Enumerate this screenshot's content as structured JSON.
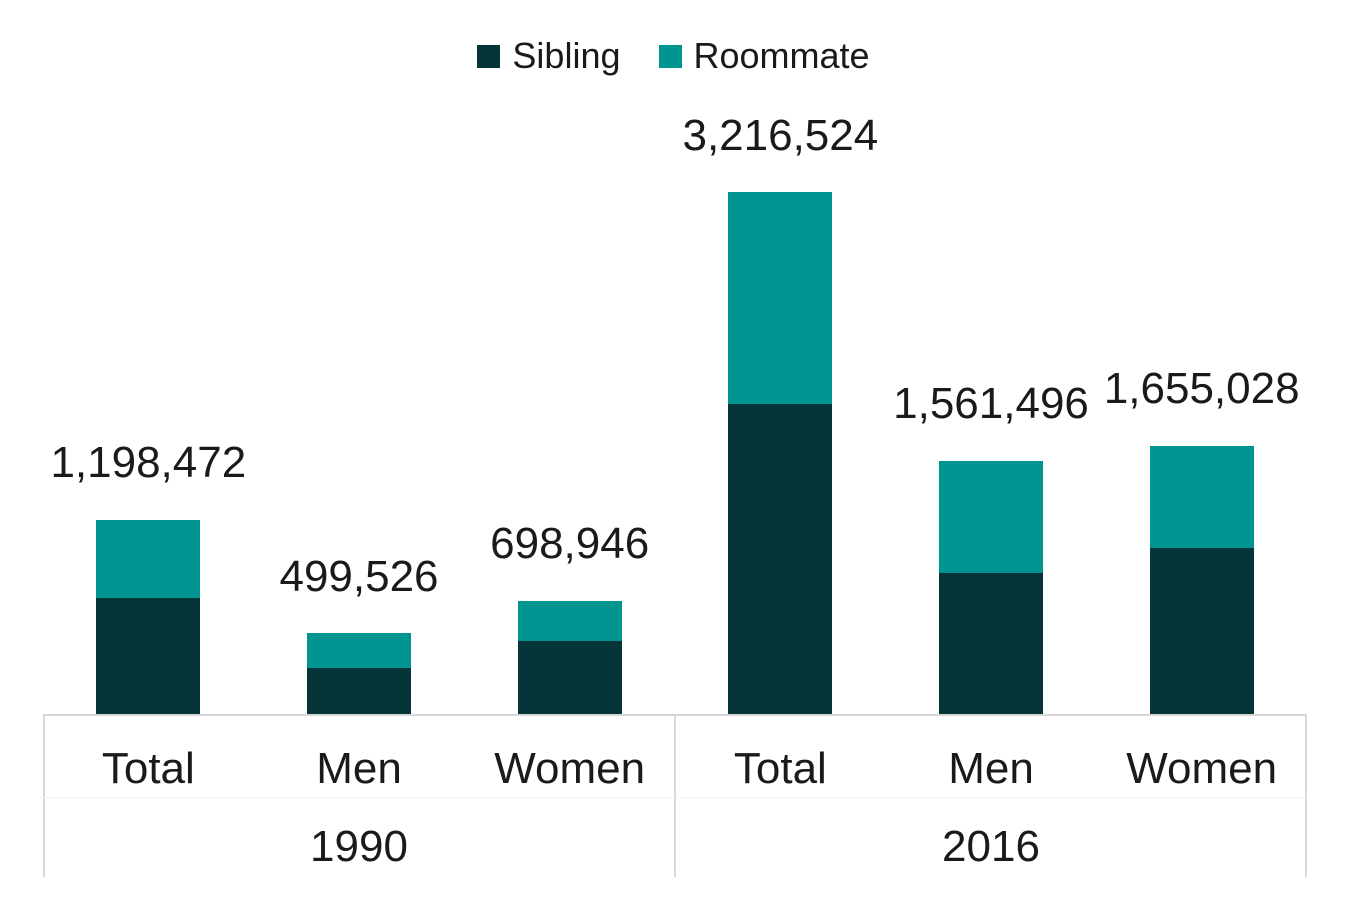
{
  "chart_data": {
    "type": "bar",
    "stacked": true,
    "title": "",
    "xlabel": "",
    "ylabel": "",
    "categories": [
      "Total",
      "Men",
      "Women",
      "Total",
      "Men",
      "Women"
    ],
    "group_labels": [
      "1990",
      "2016"
    ],
    "series": [
      {
        "name": "Sibling",
        "color": "#053539",
        "values": [
          716000,
          283000,
          449000,
          1910000,
          870000,
          1025000
        ]
      },
      {
        "name": "Roommate",
        "color": "#009590",
        "values": [
          482472,
          216526,
          249946,
          1306524,
          691496,
          630028
        ]
      }
    ],
    "totals": [
      1198472,
      499526,
      698946,
      3216524,
      1561496,
      1655028
    ],
    "total_labels": [
      "1,198,472",
      "499,526",
      "698,946",
      "3,216,524",
      "1,561,496",
      "1,655,028"
    ],
    "segment_values_estimated": true,
    "ylim": [
      0,
      3216524
    ],
    "grid": false,
    "legend_position": "top-center",
    "axis_color": "#d9d9d9",
    "text_color": "#1a1a1a",
    "background": "#ffffff"
  }
}
